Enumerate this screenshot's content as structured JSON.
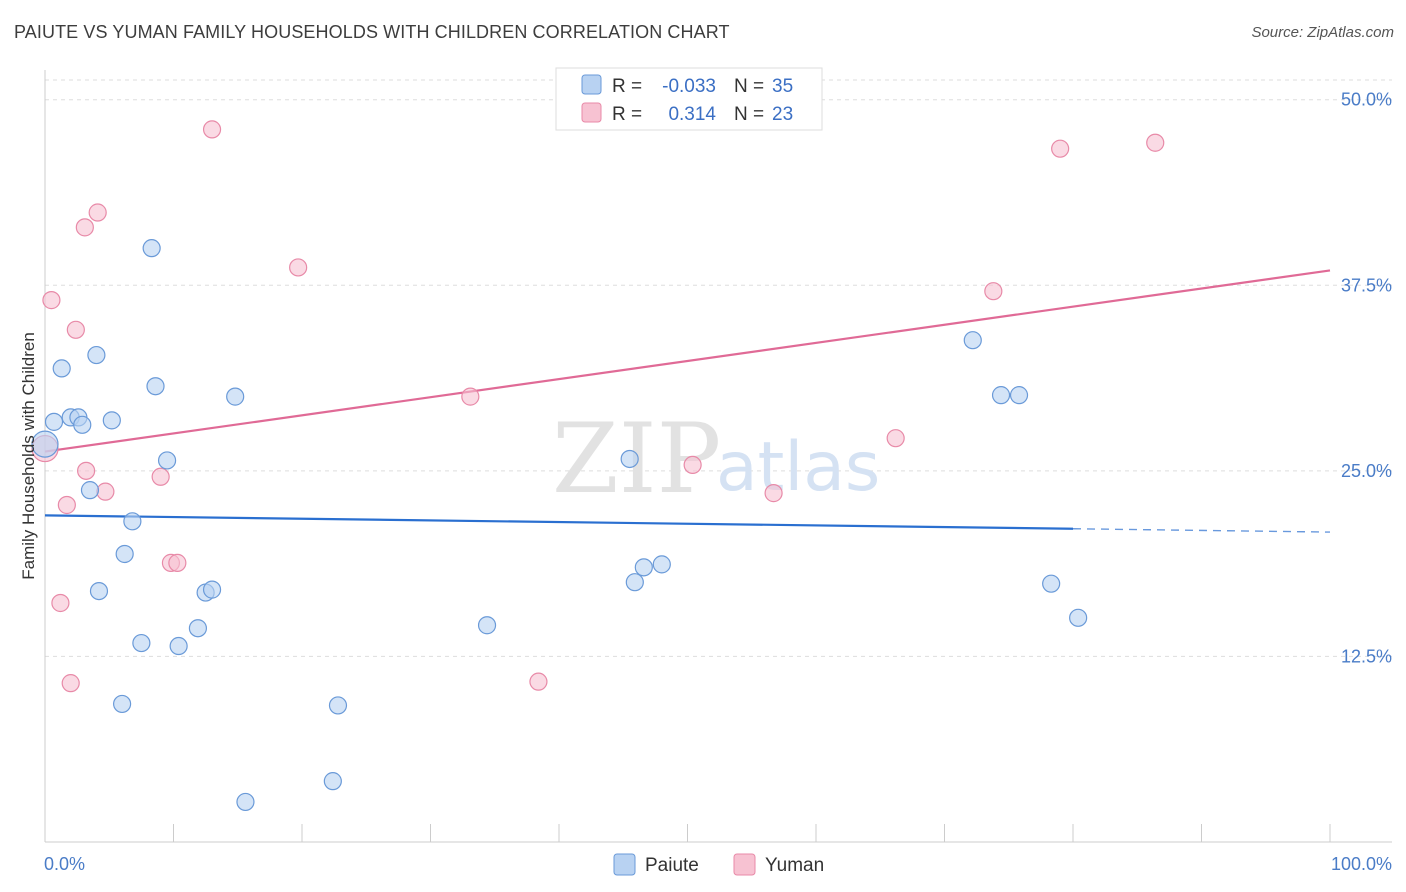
{
  "title": "PAIUTE VS YUMAN FAMILY HOUSEHOLDS WITH CHILDREN CORRELATION CHART",
  "source": "Source: ZipAtlas.com",
  "watermark": {
    "zip": "ZIP",
    "atlas": "atlas"
  },
  "legend": {
    "r_label": "R =",
    "n_label": "N =",
    "rows": [
      {
        "series": "Paiute",
        "r": "-0.033",
        "n": "35"
      },
      {
        "series": "Yuman",
        "r": "0.314",
        "n": "23"
      }
    ]
  },
  "colors": {
    "paiute_fill": "#b8d2f2",
    "paiute_stroke": "#6a9ad8",
    "paiute_line": "#2a6fd0",
    "yuman_fill": "#f7c2d2",
    "yuman_stroke": "#e88aa8",
    "yuman_line": "#e06a96",
    "grid": "#dddddd",
    "axis": "#cccccc",
    "tick_text": "#4a7cc7"
  },
  "chart_data": {
    "type": "scatter",
    "title": "PAIUTE VS YUMAN FAMILY HOUSEHOLDS WITH CHILDREN CORRELATION CHART",
    "xlabel": "",
    "ylabel": "Family Households with Children",
    "xlim": [
      0,
      100
    ],
    "ylim": [
      0,
      52
    ],
    "x_ticks": [
      "0.0%",
      "100.0%"
    ],
    "y_ticks": [
      {
        "value": 12.5,
        "label": "12.5%"
      },
      {
        "value": 25.0,
        "label": "25.0%"
      },
      {
        "value": 37.5,
        "label": "37.5%"
      },
      {
        "value": 50.0,
        "label": "50.0%"
      }
    ],
    "series": [
      {
        "name": "Paiute",
        "points": [
          [
            0.0,
            26.8
          ],
          [
            0.7,
            28.3
          ],
          [
            1.3,
            31.9
          ],
          [
            2.0,
            28.6
          ],
          [
            2.6,
            28.6
          ],
          [
            2.9,
            28.1
          ],
          [
            3.5,
            23.7
          ],
          [
            4.0,
            32.8
          ],
          [
            5.2,
            28.4
          ],
          [
            4.2,
            16.9
          ],
          [
            6.0,
            9.3
          ],
          [
            6.2,
            19.4
          ],
          [
            6.8,
            21.6
          ],
          [
            7.5,
            13.4
          ],
          [
            8.3,
            40.0
          ],
          [
            8.6,
            30.7
          ],
          [
            9.5,
            25.7
          ],
          [
            10.4,
            13.2
          ],
          [
            11.9,
            14.4
          ],
          [
            12.5,
            16.8
          ],
          [
            13.0,
            17.0
          ],
          [
            14.8,
            30.0
          ],
          [
            15.6,
            2.7
          ],
          [
            22.4,
            4.1
          ],
          [
            22.8,
            9.2
          ],
          [
            34.4,
            14.6
          ],
          [
            45.5,
            25.8
          ],
          [
            45.9,
            17.5
          ],
          [
            46.6,
            18.5
          ],
          [
            48.0,
            18.7
          ],
          [
            72.2,
            33.8
          ],
          [
            74.4,
            30.1
          ],
          [
            75.8,
            30.1
          ],
          [
            78.3,
            17.4
          ],
          [
            80.4,
            15.1
          ]
        ],
        "trend": {
          "x": [
            0,
            80
          ],
          "y": [
            22.0,
            21.1
          ],
          "dashed_to_x": 100
        }
      },
      {
        "name": "Yuman",
        "points": [
          [
            0.0,
            26.5
          ],
          [
            0.5,
            36.5
          ],
          [
            1.2,
            16.1
          ],
          [
            1.7,
            22.7
          ],
          [
            2.0,
            10.7
          ],
          [
            2.4,
            34.5
          ],
          [
            3.1,
            41.4
          ],
          [
            3.2,
            25.0
          ],
          [
            4.1,
            42.4
          ],
          [
            4.7,
            23.6
          ],
          [
            9.0,
            24.6
          ],
          [
            9.8,
            18.8
          ],
          [
            10.3,
            18.8
          ],
          [
            13.0,
            48.0
          ],
          [
            19.7,
            38.7
          ],
          [
            33.1,
            30.0
          ],
          [
            38.4,
            10.8
          ],
          [
            50.4,
            25.4
          ],
          [
            56.7,
            23.5
          ],
          [
            66.2,
            27.2
          ],
          [
            73.8,
            37.1
          ],
          [
            79.0,
            46.7
          ],
          [
            86.4,
            47.1
          ]
        ],
        "trend": {
          "x": [
            0,
            100
          ],
          "y": [
            26.3,
            38.5
          ]
        }
      }
    ]
  }
}
